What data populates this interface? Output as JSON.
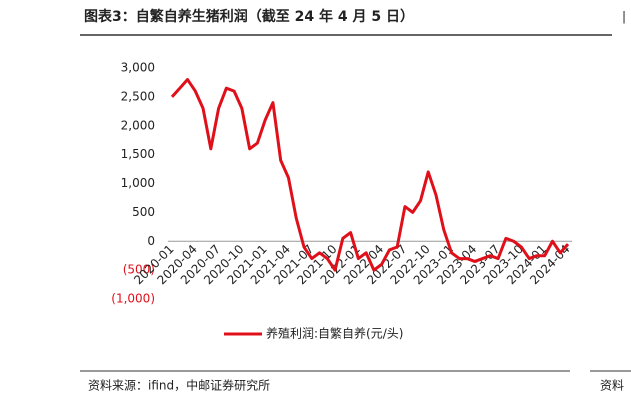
{
  "chart_data": {
    "type": "line",
    "title": "图表3：自繁自养生猪利润（截至 24 年 4 月 5 日）",
    "source": "资料来源：ifind，中邮证券研究所",
    "side_source": "资料",
    "categories": [
      "2020-01",
      null,
      null,
      "2020-04",
      null,
      null,
      "2020-07",
      null,
      null,
      "2020-10",
      null,
      null,
      "2021-01",
      null,
      null,
      "2021-04",
      null,
      null,
      "2021-07",
      null,
      null,
      "2021-10",
      null,
      null,
      "2022-01",
      null,
      null,
      "2022-04",
      null,
      null,
      "2022-07",
      null,
      null,
      "2022-10",
      null,
      null,
      "2023-01",
      null,
      null,
      "2023-04",
      null,
      null,
      "2023-07",
      null,
      null,
      "2023-10",
      null,
      null,
      "2024-01",
      null,
      null,
      "2024-04"
    ],
    "series": [
      {
        "name": "养殖利润:自繁自养(元/头)",
        "color": "#e0101a",
        "values": [
          2500,
          2650,
          2800,
          2600,
          2300,
          1600,
          2300,
          2650,
          2600,
          2300,
          1600,
          1700,
          2100,
          2400,
          1400,
          1100,
          400,
          -100,
          -300,
          -200,
          -300,
          -500,
          50,
          150,
          -300,
          -200,
          -500,
          -400,
          -150,
          -100,
          600,
          500,
          700,
          1200,
          800,
          200,
          -200,
          -300,
          -300,
          -350,
          -300,
          -250,
          -300,
          50,
          0,
          -100,
          -300,
          -250,
          -250,
          0,
          -200,
          -50
        ]
      }
    ],
    "ylim": [
      -1000,
      3000
    ],
    "yticks": [
      {
        "value": -1000,
        "label": "(1,000)"
      },
      {
        "value": -500,
        "label": "(500)"
      },
      0,
      {
        "value": 500,
        "label": "500"
      },
      {
        "value": 1000,
        "label": "1,000"
      },
      {
        "value": 1500,
        "label": "1,500"
      },
      {
        "value": 2000,
        "label": "2,000"
      },
      {
        "value": 2500,
        "label": "2,500"
      },
      {
        "value": 3000,
        "label": "3,000"
      }
    ],
    "negative_tick_color": "#e0101a",
    "grid": false,
    "legend": "bottom"
  }
}
